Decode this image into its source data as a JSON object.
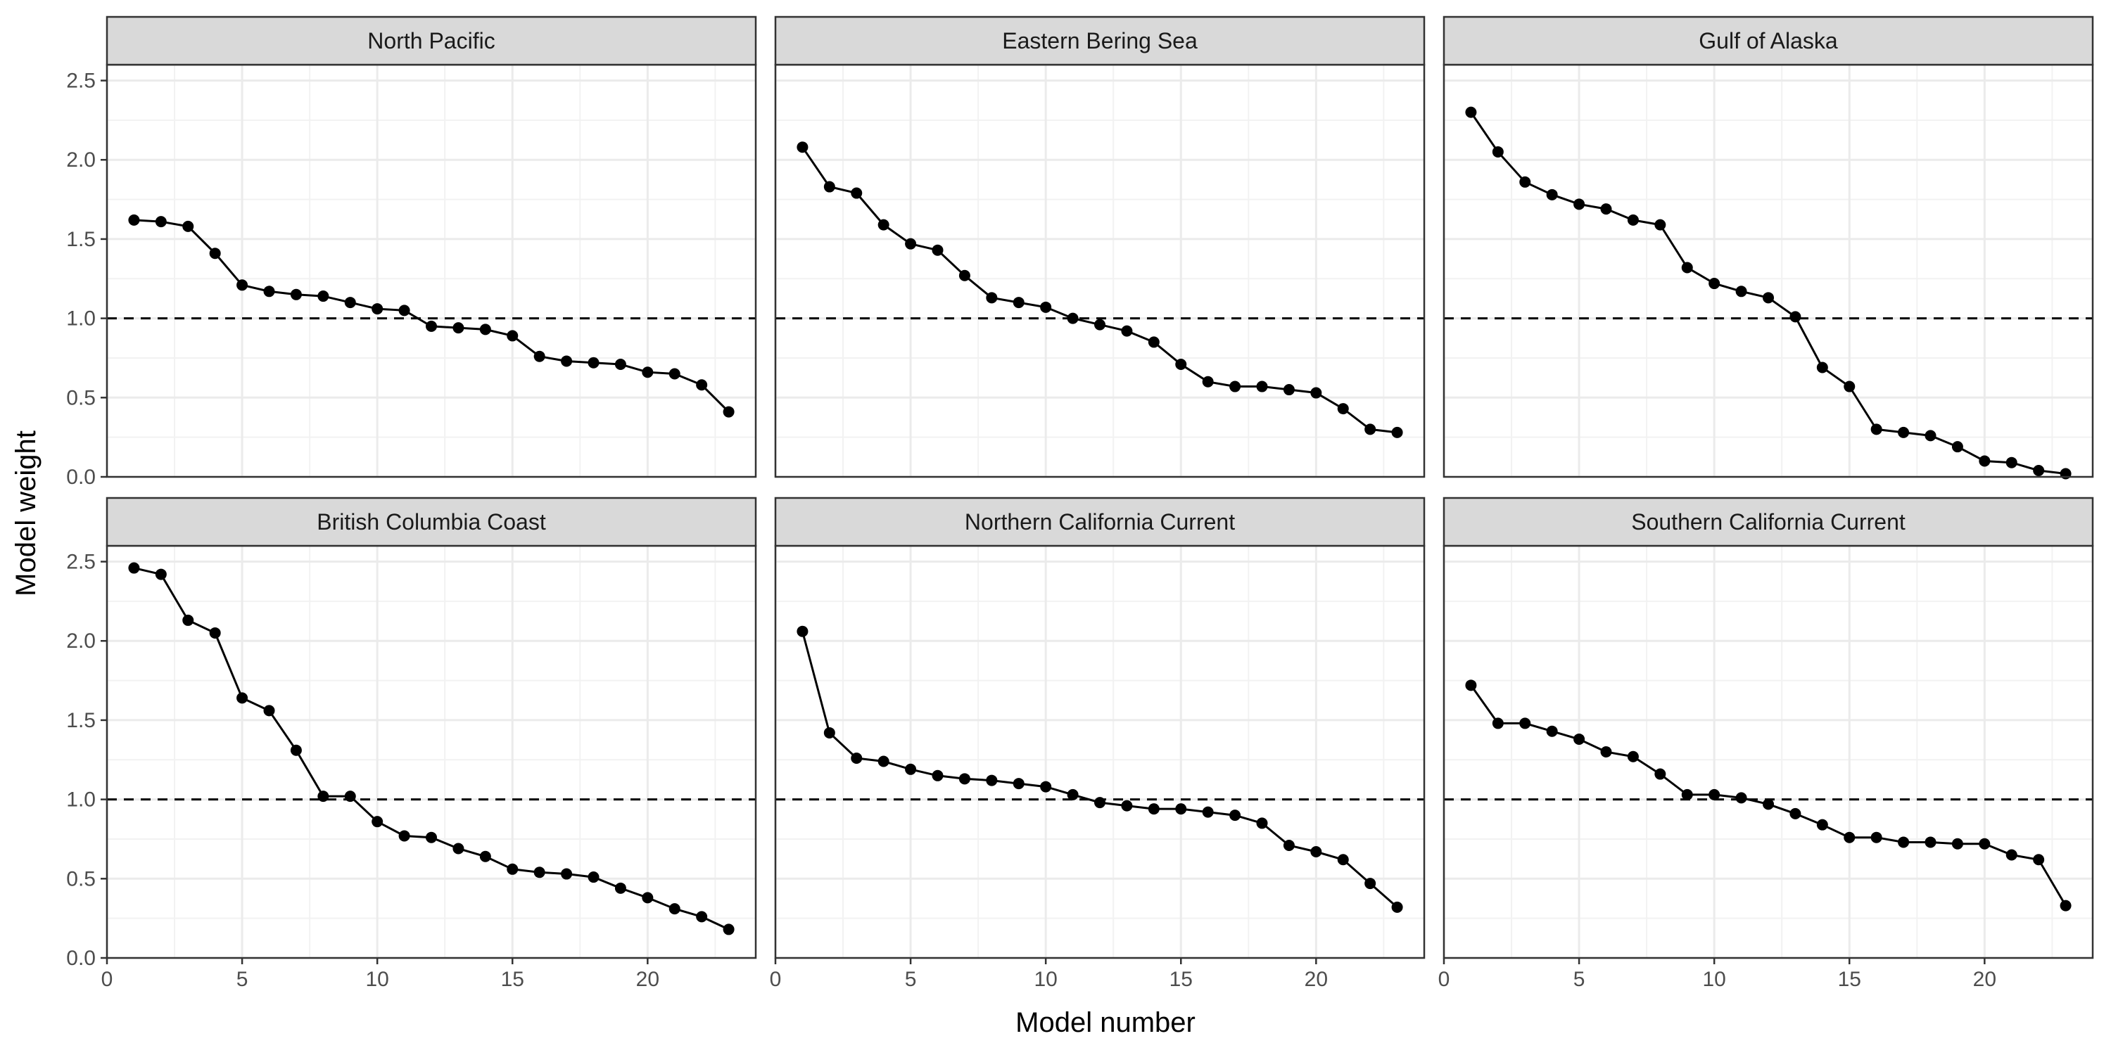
{
  "chart_data": {
    "type": "line",
    "xlabel": "Model number",
    "ylabel": "Model weight",
    "xlim": [
      0,
      24
    ],
    "ylim": [
      0,
      2.6
    ],
    "x_ticks": [
      0,
      5,
      10,
      15,
      20
    ],
    "y_ticks": [
      0.0,
      0.5,
      1.0,
      1.5,
      2.0,
      2.5
    ],
    "y_tick_labels": [
      "0.0",
      "0.5",
      "1.0",
      "1.5",
      "2.0",
      "2.5"
    ],
    "reference_line": {
      "y": 1.0,
      "style": "dashed"
    },
    "grid": true,
    "x": [
      1,
      2,
      3,
      4,
      5,
      6,
      7,
      8,
      9,
      10,
      11,
      12,
      13,
      14,
      15,
      16,
      17,
      18,
      19,
      20,
      21,
      22,
      23
    ],
    "panels": [
      {
        "title": "North Pacific",
        "values": [
          1.62,
          1.61,
          1.58,
          1.41,
          1.21,
          1.17,
          1.15,
          1.14,
          1.1,
          1.06,
          1.05,
          0.95,
          0.94,
          0.93,
          0.89,
          0.76,
          0.73,
          0.72,
          0.71,
          0.66,
          0.65,
          0.58,
          0.41
        ]
      },
      {
        "title": "Eastern Bering Sea",
        "values": [
          2.08,
          1.83,
          1.79,
          1.59,
          1.47,
          1.43,
          1.27,
          1.13,
          1.1,
          1.07,
          1.0,
          0.96,
          0.92,
          0.85,
          0.71,
          0.6,
          0.57,
          0.57,
          0.55,
          0.53,
          0.43,
          0.3,
          0.28
        ]
      },
      {
        "title": "Gulf of Alaska",
        "values": [
          2.3,
          2.05,
          1.86,
          1.78,
          1.72,
          1.69,
          1.62,
          1.59,
          1.32,
          1.22,
          1.17,
          1.13,
          1.01,
          0.69,
          0.57,
          0.3,
          0.28,
          0.26,
          0.19,
          0.1,
          0.09,
          0.04,
          0.02
        ]
      },
      {
        "title": "British Columbia Coast",
        "values": [
          2.46,
          2.42,
          2.13,
          2.05,
          1.64,
          1.56,
          1.31,
          1.02,
          1.02,
          0.86,
          0.77,
          0.76,
          0.69,
          0.64,
          0.56,
          0.54,
          0.53,
          0.51,
          0.44,
          0.38,
          0.31,
          0.26,
          0.18
        ]
      },
      {
        "title": "Northern California Current",
        "values": [
          2.06,
          1.42,
          1.26,
          1.24,
          1.19,
          1.15,
          1.13,
          1.12,
          1.1,
          1.08,
          1.03,
          0.98,
          0.96,
          0.94,
          0.94,
          0.92,
          0.9,
          0.85,
          0.71,
          0.67,
          0.62,
          0.47,
          0.32
        ]
      },
      {
        "title": "Southern California Current",
        "values": [
          1.72,
          1.48,
          1.48,
          1.43,
          1.38,
          1.3,
          1.27,
          1.16,
          1.03,
          1.03,
          1.01,
          0.97,
          0.91,
          0.84,
          0.76,
          0.76,
          0.73,
          0.73,
          0.72,
          0.72,
          0.65,
          0.62,
          0.33
        ]
      }
    ]
  }
}
